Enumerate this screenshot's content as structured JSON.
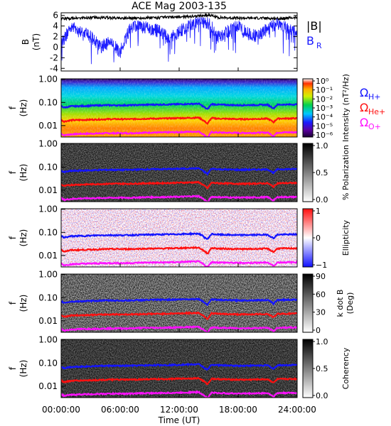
{
  "title": "ACE Mag 2003-135",
  "colors": {
    "B": "#000000",
    "BR": "#1a1aff",
    "omegaH": "#1414ff",
    "omegaHe": "#ff1010",
    "omegaO": "#ff10ff",
    "frame": "#000000"
  },
  "chart_data": [
    {
      "type": "line",
      "ylabel_top": "B",
      "ylabel_unit": "(nT)",
      "ylim": [
        -4.5,
        6.5
      ],
      "yticks": [
        "6",
        "4",
        "2",
        "0",
        "-2",
        "-4"
      ],
      "ytick_values": [
        6,
        4,
        2,
        0,
        -2,
        -4
      ],
      "legend": [
        "|B|",
        "B_R"
      ],
      "legend_B": "|B|",
      "legend_BR_base": "B",
      "legend_BR_sub": "R",
      "series": [
        {
          "name": "|B|",
          "color": "#000000",
          "x": [
            0,
            2,
            4,
            6,
            8,
            10,
            12,
            14,
            15,
            16,
            18,
            20,
            22,
            24
          ],
          "values": [
            5.4,
            5.5,
            5.6,
            5.5,
            5.5,
            5.6,
            5.7,
            5.9,
            6.1,
            5.6,
            5.5,
            5.5,
            5.4,
            5.6
          ]
        },
        {
          "name": "B_R",
          "color": "#1a1aff",
          "x": [
            0,
            1,
            2,
            3,
            4,
            5,
            6,
            7,
            8,
            9,
            10,
            11,
            12,
            13,
            14,
            15,
            16,
            17,
            18,
            19,
            20,
            21,
            22,
            23,
            24
          ],
          "values": [
            0.5,
            4.0,
            3.0,
            2.0,
            0.0,
            1.0,
            -1.0,
            3.5,
            4.0,
            3.5,
            3.0,
            1.5,
            3.0,
            4.0,
            5.0,
            4.5,
            2.0,
            3.0,
            4.0,
            2.5,
            2.0,
            3.5,
            4.5,
            3.5,
            3.0
          ]
        }
      ]
    },
    {
      "type": "heatmap",
      "ylabel_top": "f",
      "ylabel_unit": "(Hz)",
      "yticks": [
        "1.00",
        "0.10",
        "0.01"
      ],
      "ytick_values": [
        1.0,
        0.1,
        0.01
      ],
      "colorbar_label": "Intensity (nT²/Hz)",
      "colorbar_ticks": [
        "10⁰",
        "10⁻¹",
        "10⁻²",
        "10⁻³",
        "10⁻⁴",
        "10⁻⁵",
        "10⁻⁶"
      ],
      "colormap": "rainbow"
    },
    {
      "type": "heatmap",
      "ylabel_top": "f",
      "ylabel_unit": "(Hz)",
      "yticks": [
        "1.00",
        "0.10",
        "0.01"
      ],
      "ytick_values": [
        1.0,
        0.1,
        0.01
      ],
      "colorbar_label": "% Polarization",
      "colorbar_ticks": [
        "1.0",
        "0.5",
        "0.0"
      ],
      "colormap": "gray"
    },
    {
      "type": "heatmap",
      "ylabel_top": "f",
      "ylabel_unit": "(Hz)",
      "yticks": [
        "1.00",
        "0.10",
        "0.01"
      ],
      "ytick_values": [
        1.0,
        0.1,
        0.01
      ],
      "colorbar_label": "Ellipticity",
      "colorbar_ticks": [
        "1",
        "0",
        "−1"
      ],
      "colormap": "bluewhitered"
    },
    {
      "type": "heatmap",
      "ylabel_top": "f",
      "ylabel_unit": "(Hz)",
      "yticks": [
        "1.00",
        "0.10",
        "0.01"
      ],
      "ytick_values": [
        1.0,
        0.1,
        0.01
      ],
      "colorbar_label": "k dot B",
      "colorbar_label2": "(Deg)",
      "colorbar_ticks": [
        "90",
        "60",
        "30",
        "0"
      ],
      "colormap": "gray"
    },
    {
      "type": "heatmap",
      "ylabel_top": "f",
      "ylabel_unit": "(Hz)",
      "yticks": [
        "1.00",
        "0.10",
        "0.01"
      ],
      "ytick_values": [
        1.0,
        0.1,
        0.01
      ],
      "colorbar_label": "Coherency",
      "colorbar_ticks": [
        "1.0",
        "0.5",
        "0.0"
      ],
      "colormap": "gray"
    }
  ],
  "gyro_lines": {
    "labels": {
      "H": "H+",
      "He": "He+",
      "O": "O+"
    },
    "omega_symbol": "Ω",
    "hours": [
      0,
      0.3,
      1,
      2,
      3,
      4,
      5,
      6,
      7,
      8,
      9,
      10,
      11,
      12,
      13,
      14,
      14.6,
      14.9,
      15.3,
      16,
      17,
      18,
      19,
      20,
      21,
      21.6,
      22,
      23,
      24
    ],
    "H_hz": [
      0.07,
      0.06,
      0.068,
      0.07,
      0.072,
      0.075,
      0.076,
      0.075,
      0.076,
      0.078,
      0.08,
      0.081,
      0.082,
      0.084,
      0.086,
      0.088,
      0.06,
      0.05,
      0.085,
      0.08,
      0.078,
      0.076,
      0.077,
      0.078,
      0.079,
      0.055,
      0.08,
      0.081,
      0.082
    ],
    "He_hz": [
      0.0175,
      0.015,
      0.017,
      0.0175,
      0.018,
      0.0185,
      0.019,
      0.019,
      0.019,
      0.0195,
      0.02,
      0.02,
      0.0205,
      0.021,
      0.0215,
      0.022,
      0.015,
      0.012,
      0.021,
      0.02,
      0.0195,
      0.019,
      0.019,
      0.0195,
      0.0198,
      0.014,
      0.02,
      0.0203,
      0.0205
    ],
    "O_hz": [
      0.0045,
      0.0038,
      0.0042,
      0.0044,
      0.0045,
      0.0046,
      0.0047,
      0.0047,
      0.0047,
      0.0049,
      0.005,
      0.005,
      0.0051,
      0.0052,
      0.0054,
      0.0055,
      0.0038,
      0.003,
      0.0052,
      0.005,
      0.0049,
      0.0048,
      0.0048,
      0.0049,
      0.005,
      0.0035,
      0.005,
      0.0051,
      0.0051
    ]
  },
  "xaxis": {
    "label": "Time (UT)",
    "ticks": [
      "00:00:00",
      "06:00:00",
      "12:00:00",
      "18:00:00",
      "24:00:00"
    ],
    "tick_hours": [
      0,
      6,
      12,
      18,
      24
    ]
  }
}
